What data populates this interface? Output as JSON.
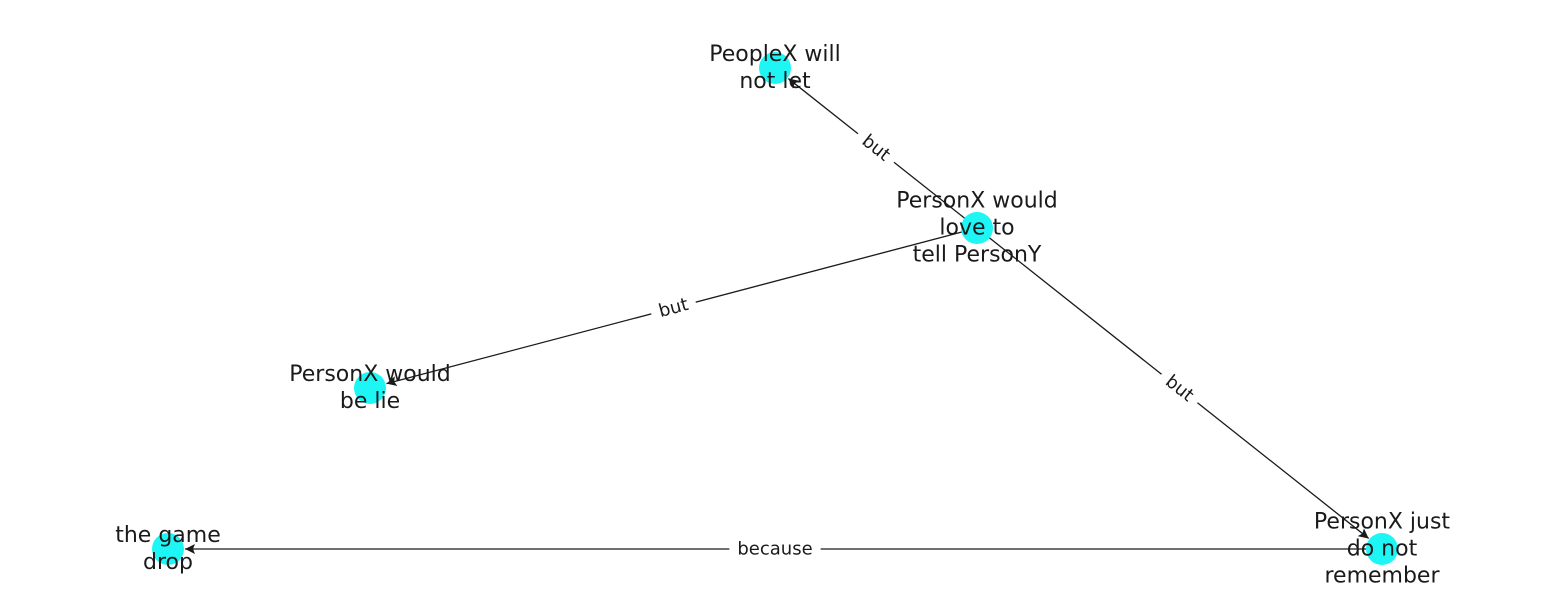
{
  "graph": {
    "node_color": "#1ef6f6",
    "edge_color": "#1a1a1a",
    "nodes": [
      {
        "id": "center",
        "label_lines": [
          "PersonX would",
          "love to",
          "tell PersonY"
        ]
      },
      {
        "id": "top",
        "label_lines": [
          "PeopleX will",
          "not let"
        ]
      },
      {
        "id": "left",
        "label_lines": [
          "PersonX would",
          "be lie"
        ]
      },
      {
        "id": "bottom-right",
        "label_lines": [
          "PersonX just",
          "do not",
          "remember"
        ]
      },
      {
        "id": "bottom-left",
        "label_lines": [
          "the game",
          "drop"
        ]
      }
    ],
    "edges": [
      {
        "from": "center",
        "to": "top",
        "label": "but"
      },
      {
        "from": "center",
        "to": "left",
        "label": "but"
      },
      {
        "from": "center",
        "to": "bottom-right",
        "label": "but"
      },
      {
        "from": "bottom-right",
        "to": "bottom-left",
        "label": "because"
      }
    ]
  }
}
